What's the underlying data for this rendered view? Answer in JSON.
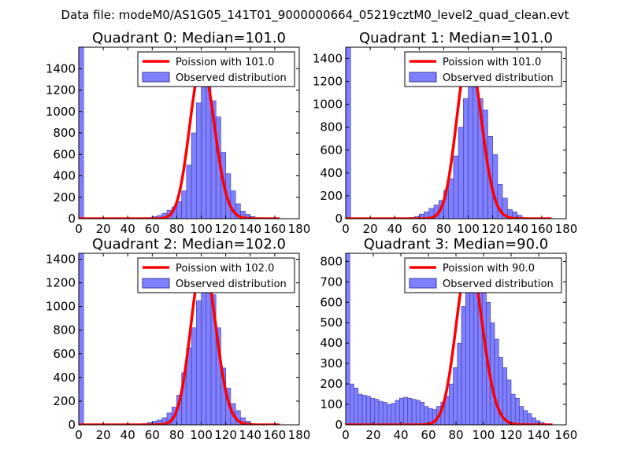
{
  "figure": {
    "suptitle": "Data file: modeM0/AS1G05_141T01_9000000664_05219cztM0_level2_quad_clean.evt"
  },
  "colors": {
    "hist_fill": "#7f7fff",
    "hist_edge": "#3b3b9e",
    "poisson_line": "#ff0000",
    "axes": "#000000"
  },
  "chart_data": [
    {
      "type": "bar",
      "title": "Quadrant 0: Median=101.0",
      "xlim": [
        0,
        180
      ],
      "ylim": [
        0,
        1600
      ],
      "xticks": [
        0,
        20,
        40,
        60,
        80,
        100,
        120,
        140,
        160,
        180
      ],
      "yticks": [
        0,
        200,
        400,
        600,
        800,
        1000,
        1200,
        1400
      ],
      "bin_width": 4,
      "legend": {
        "line_label": "Poission with 101.0",
        "bar_label": "Observed distribution",
        "placement": "top-right"
      },
      "poisson_mean": 101.0,
      "poisson_peak": 1440,
      "line_range": [
        0,
        164
      ],
      "bins": [
        [
          0,
          1600
        ],
        [
          56,
          10
        ],
        [
          60,
          20
        ],
        [
          64,
          30
        ],
        [
          68,
          50
        ],
        [
          72,
          80
        ],
        [
          76,
          110
        ],
        [
          80,
          160
        ],
        [
          84,
          260
        ],
        [
          88,
          500
        ],
        [
          92,
          800
        ],
        [
          96,
          1080
        ],
        [
          100,
          1300
        ],
        [
          104,
          1250
        ],
        [
          108,
          1100
        ],
        [
          112,
          950
        ],
        [
          116,
          620
        ],
        [
          120,
          420
        ],
        [
          124,
          260
        ],
        [
          128,
          140
        ],
        [
          132,
          70
        ],
        [
          136,
          40
        ],
        [
          140,
          20
        ],
        [
          144,
          10
        ],
        [
          148,
          5
        ]
      ]
    },
    {
      "type": "bar",
      "title": "Quadrant 1: Median=101.0",
      "xlim": [
        0,
        180
      ],
      "ylim": [
        0,
        1500
      ],
      "xticks": [
        0,
        20,
        40,
        60,
        80,
        100,
        120,
        140,
        160,
        180
      ],
      "yticks": [
        0,
        200,
        400,
        600,
        800,
        1000,
        1200,
        1400
      ],
      "bin_width": 4,
      "legend": {
        "line_label": "Poission with 101.0",
        "bar_label": "Observed distribution",
        "placement": "top-right"
      },
      "poisson_mean": 101.0,
      "poisson_peak": 1440,
      "line_range": [
        0,
        168
      ],
      "bins": [
        [
          0,
          1500
        ],
        [
          52,
          10
        ],
        [
          56,
          20
        ],
        [
          60,
          40
        ],
        [
          64,
          60
        ],
        [
          68,
          90
        ],
        [
          72,
          120
        ],
        [
          76,
          160
        ],
        [
          80,
          250
        ],
        [
          84,
          350
        ],
        [
          88,
          550
        ],
        [
          92,
          800
        ],
        [
          96,
          1050
        ],
        [
          100,
          1280
        ],
        [
          104,
          1150
        ],
        [
          108,
          1050
        ],
        [
          112,
          950
        ],
        [
          116,
          720
        ],
        [
          120,
          560
        ],
        [
          124,
          300
        ],
        [
          128,
          180
        ],
        [
          132,
          80
        ],
        [
          136,
          60
        ],
        [
          140,
          30
        ],
        [
          144,
          10
        ],
        [
          148,
          5
        ]
      ]
    },
    {
      "type": "bar",
      "title": "Quadrant 2: Median=102.0",
      "xlim": [
        0,
        180
      ],
      "ylim": [
        0,
        1450
      ],
      "xticks": [
        0,
        20,
        40,
        60,
        80,
        100,
        120,
        140,
        160,
        180
      ],
      "yticks": [
        0,
        200,
        400,
        600,
        800,
        1000,
        1200,
        1400
      ],
      "bin_width": 4,
      "legend": {
        "line_label": "Poission with 102.0",
        "bar_label": "Observed distribution",
        "placement": "top-right"
      },
      "poisson_mean": 102.0,
      "poisson_peak": 1390,
      "line_range": [
        0,
        164
      ],
      "bins": [
        [
          0,
          1450
        ],
        [
          52,
          10
        ],
        [
          56,
          20
        ],
        [
          60,
          30
        ],
        [
          64,
          40
        ],
        [
          68,
          60
        ],
        [
          72,
          100
        ],
        [
          76,
          150
        ],
        [
          80,
          250
        ],
        [
          84,
          440
        ],
        [
          88,
          650
        ],
        [
          92,
          820
        ],
        [
          96,
          1050
        ],
        [
          100,
          1250
        ],
        [
          104,
          1200
        ],
        [
          108,
          1100
        ],
        [
          112,
          820
        ],
        [
          116,
          480
        ],
        [
          120,
          310
        ],
        [
          124,
          180
        ],
        [
          128,
          120
        ],
        [
          132,
          60
        ],
        [
          136,
          30
        ],
        [
          140,
          10
        ],
        [
          144,
          5
        ]
      ]
    },
    {
      "type": "bar",
      "title": "Quadrant 3: Median=90.0",
      "xlim": [
        0,
        160
      ],
      "ylim": [
        0,
        840
      ],
      "xticks": [
        0,
        20,
        40,
        60,
        80,
        100,
        120,
        140,
        160
      ],
      "yticks": [
        0,
        100,
        200,
        300,
        400,
        500,
        600,
        700,
        800
      ],
      "bin_width": 3,
      "legend": {
        "line_label": "Poission with 90.0",
        "bar_label": "Observed distribution",
        "placement": "top-right"
      },
      "poisson_mean": 90.0,
      "poisson_peak": 810,
      "line_range": [
        0,
        150
      ],
      "bins": [
        [
          0,
          840
        ],
        [
          3,
          200
        ],
        [
          6,
          180
        ],
        [
          9,
          150
        ],
        [
          12,
          145
        ],
        [
          15,
          140
        ],
        [
          18,
          130
        ],
        [
          21,
          125
        ],
        [
          24,
          115
        ],
        [
          27,
          110
        ],
        [
          30,
          100
        ],
        [
          33,
          105
        ],
        [
          36,
          120
        ],
        [
          39,
          130
        ],
        [
          42,
          135
        ],
        [
          45,
          130
        ],
        [
          48,
          125
        ],
        [
          51,
          120
        ],
        [
          54,
          110
        ],
        [
          57,
          90
        ],
        [
          60,
          80
        ],
        [
          63,
          75
        ],
        [
          66,
          90
        ],
        [
          69,
          110
        ],
        [
          72,
          140
        ],
        [
          75,
          200
        ],
        [
          78,
          280
        ],
        [
          81,
          400
        ],
        [
          84,
          580
        ],
        [
          87,
          720
        ],
        [
          90,
          760
        ],
        [
          93,
          800
        ],
        [
          96,
          780
        ],
        [
          99,
          700
        ],
        [
          102,
          600
        ],
        [
          105,
          500
        ],
        [
          108,
          420
        ],
        [
          111,
          330
        ],
        [
          114,
          280
        ],
        [
          117,
          220
        ],
        [
          120,
          150
        ],
        [
          123,
          130
        ],
        [
          126,
          90
        ],
        [
          129,
          70
        ],
        [
          132,
          55
        ],
        [
          135,
          35
        ],
        [
          138,
          20
        ],
        [
          141,
          12
        ],
        [
          144,
          5
        ]
      ]
    }
  ]
}
